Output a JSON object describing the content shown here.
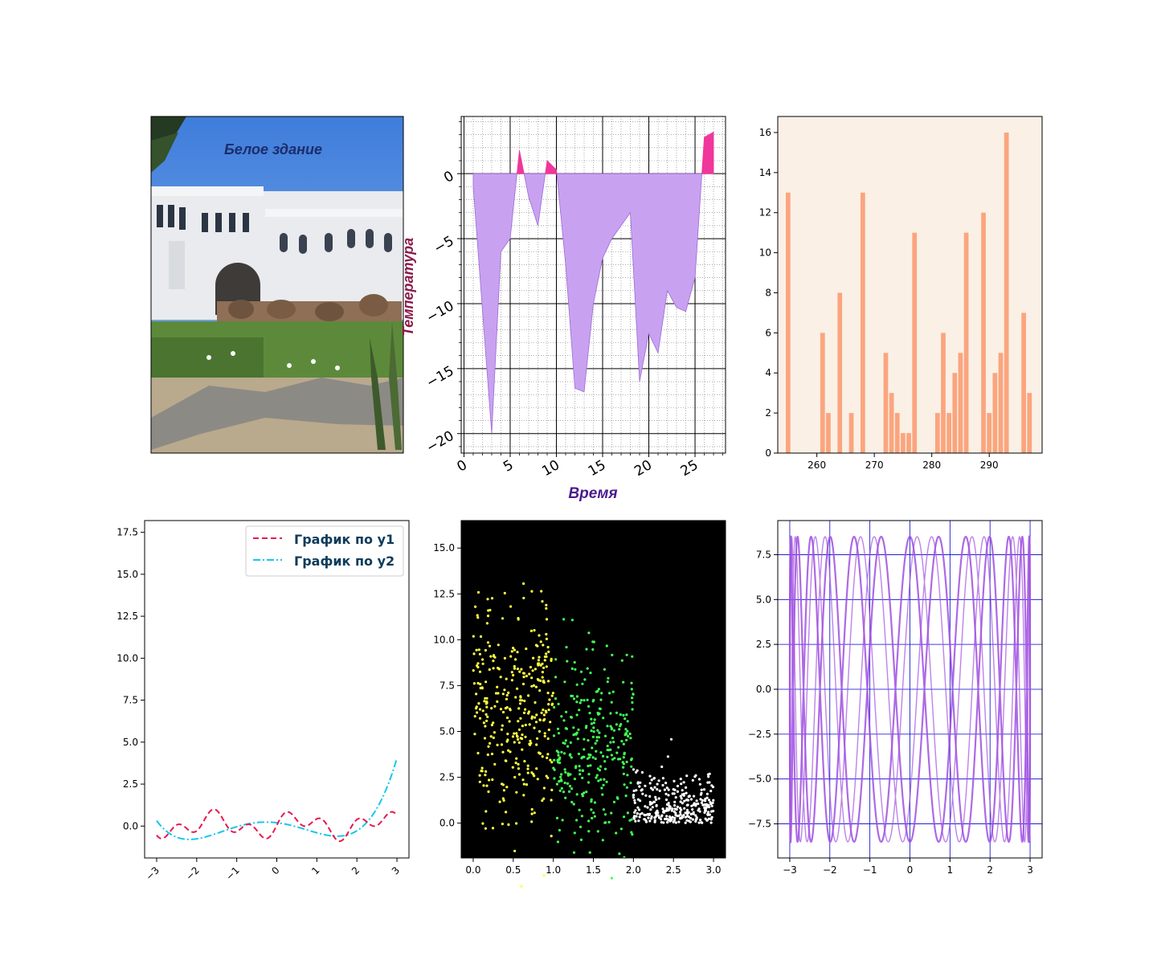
{
  "colors": {
    "area_neg": "#c8a2f0",
    "area_neg_edge": "#9f6ad6",
    "area_pos": "#f0369b",
    "bar": "#fba57e",
    "bar_bg": "#faf0e6",
    "line_y1": "#e8184f",
    "line_y2": "#14c8ea",
    "legend_text": "#0d3b5a",
    "scatter_bg": "#000000",
    "scatter_yellow": "#ffff44",
    "scatter_green": "#44ff55",
    "scatter_white": "#ffffff",
    "lissajous": "#9f4fe0",
    "lissajous_grid": "#0000cc",
    "xlabel_color": "#4b1a8c",
    "ylabel_color": "#8b1a4a",
    "photo_title_color": "#1b2d6b"
  },
  "photo": {
    "title": "Белое здание",
    "icon": "building-photo"
  },
  "chart_data": [
    {
      "type": "area",
      "xlabel": "Время",
      "ylabel": "Температура",
      "xlim": [
        -0.3,
        28.3
      ],
      "ylim": [
        -21.5,
        4.4
      ],
      "grid": "major and minor",
      "xticks": [
        0,
        5,
        10,
        15,
        20,
        25
      ],
      "yticks": [
        -20,
        -15,
        -10,
        -5,
        0
      ],
      "series": [
        {
          "x": [
            1,
            3,
            4,
            5,
            6,
            7,
            8,
            9,
            10,
            11,
            12,
            13,
            14,
            15,
            16,
            17,
            18,
            19,
            20,
            21,
            22,
            23,
            24,
            25,
            26,
            27
          ],
          "y": [
            -1,
            -20,
            -6,
            -5,
            1.8,
            -1.8,
            -4,
            1.0,
            0.3,
            -7,
            -16.5,
            -16.8,
            -10,
            -6.5,
            -5,
            -4,
            -3,
            -16,
            -12.3,
            -13.8,
            -9,
            -10.3,
            -10.6,
            -8,
            2.8,
            3.2
          ]
        }
      ]
    },
    {
      "type": "bar",
      "xlim": [
        253.2,
        299.2
      ],
      "ylim": [
        0,
        16.8
      ],
      "xticks": [
        260,
        270,
        280,
        290
      ],
      "yticks": [
        0,
        2,
        4,
        6,
        8,
        10,
        12,
        14,
        16
      ],
      "categories": [
        255,
        261,
        262,
        264,
        266,
        268,
        272,
        273,
        274,
        275,
        276,
        277,
        281,
        282,
        283,
        284,
        285,
        286,
        289,
        290,
        291,
        292,
        293,
        296,
        297
      ],
      "values": [
        13,
        6,
        2,
        8,
        2,
        13,
        5,
        3,
        2,
        1,
        1,
        11,
        2,
        6,
        2,
        4,
        5,
        11,
        12,
        2,
        4,
        5,
        16,
        7,
        3
      ]
    },
    {
      "type": "line",
      "xlim": [
        -3.3,
        3.3
      ],
      "ylim": [
        -1.9,
        18.2
      ],
      "xticks": [
        -3,
        -2,
        -1,
        0,
        1,
        2,
        3
      ],
      "yticks": [
        0.0,
        2.5,
        5.0,
        7.5,
        10.0,
        12.5,
        15.0,
        17.5
      ],
      "legend": "top-right",
      "series": [
        {
          "name": "График по y1",
          "function": "sin(5x)·cos(2x)",
          "style": "dashed"
        },
        {
          "name": "График по y2",
          "function": "0.08x⁴ + 0.4x³ ... (quartic)",
          "style": "dashdot"
        }
      ]
    },
    {
      "type": "scatter",
      "xlim": [
        -0.15,
        3.15
      ],
      "ylim": [
        -1.9,
        16.5
      ],
      "xticks": [
        0.0,
        0.5,
        1.0,
        1.5,
        2.0,
        2.5,
        3.0
      ],
      "yticks": [
        0.0,
        2.5,
        5.0,
        7.5,
        10.0,
        12.5,
        15.0
      ],
      "series": [
        {
          "name": "",
          "x_range": [
            0,
            1
          ],
          "y_center": 6,
          "color": "yellow"
        },
        {
          "name": "",
          "x_range": [
            1,
            2
          ],
          "y_center": 4,
          "color": "green"
        },
        {
          "name": "",
          "x_range": [
            2,
            3
          ],
          "y_center": 1,
          "color": "white"
        }
      ]
    },
    {
      "type": "line",
      "xlim": [
        -3.3,
        3.3
      ],
      "ylim": [
        -9.4,
        9.4
      ],
      "xticks": [
        -3,
        -2,
        -1,
        0,
        1,
        2,
        3
      ],
      "yticks": [
        -7.5,
        -5.0,
        -2.5,
        0.0,
        2.5,
        5.0,
        7.5
      ],
      "grid": "blue",
      "series": [
        {
          "name": "",
          "x": "3·sin(t)",
          "y": "8.5·cos(k·t)"
        }
      ]
    }
  ]
}
